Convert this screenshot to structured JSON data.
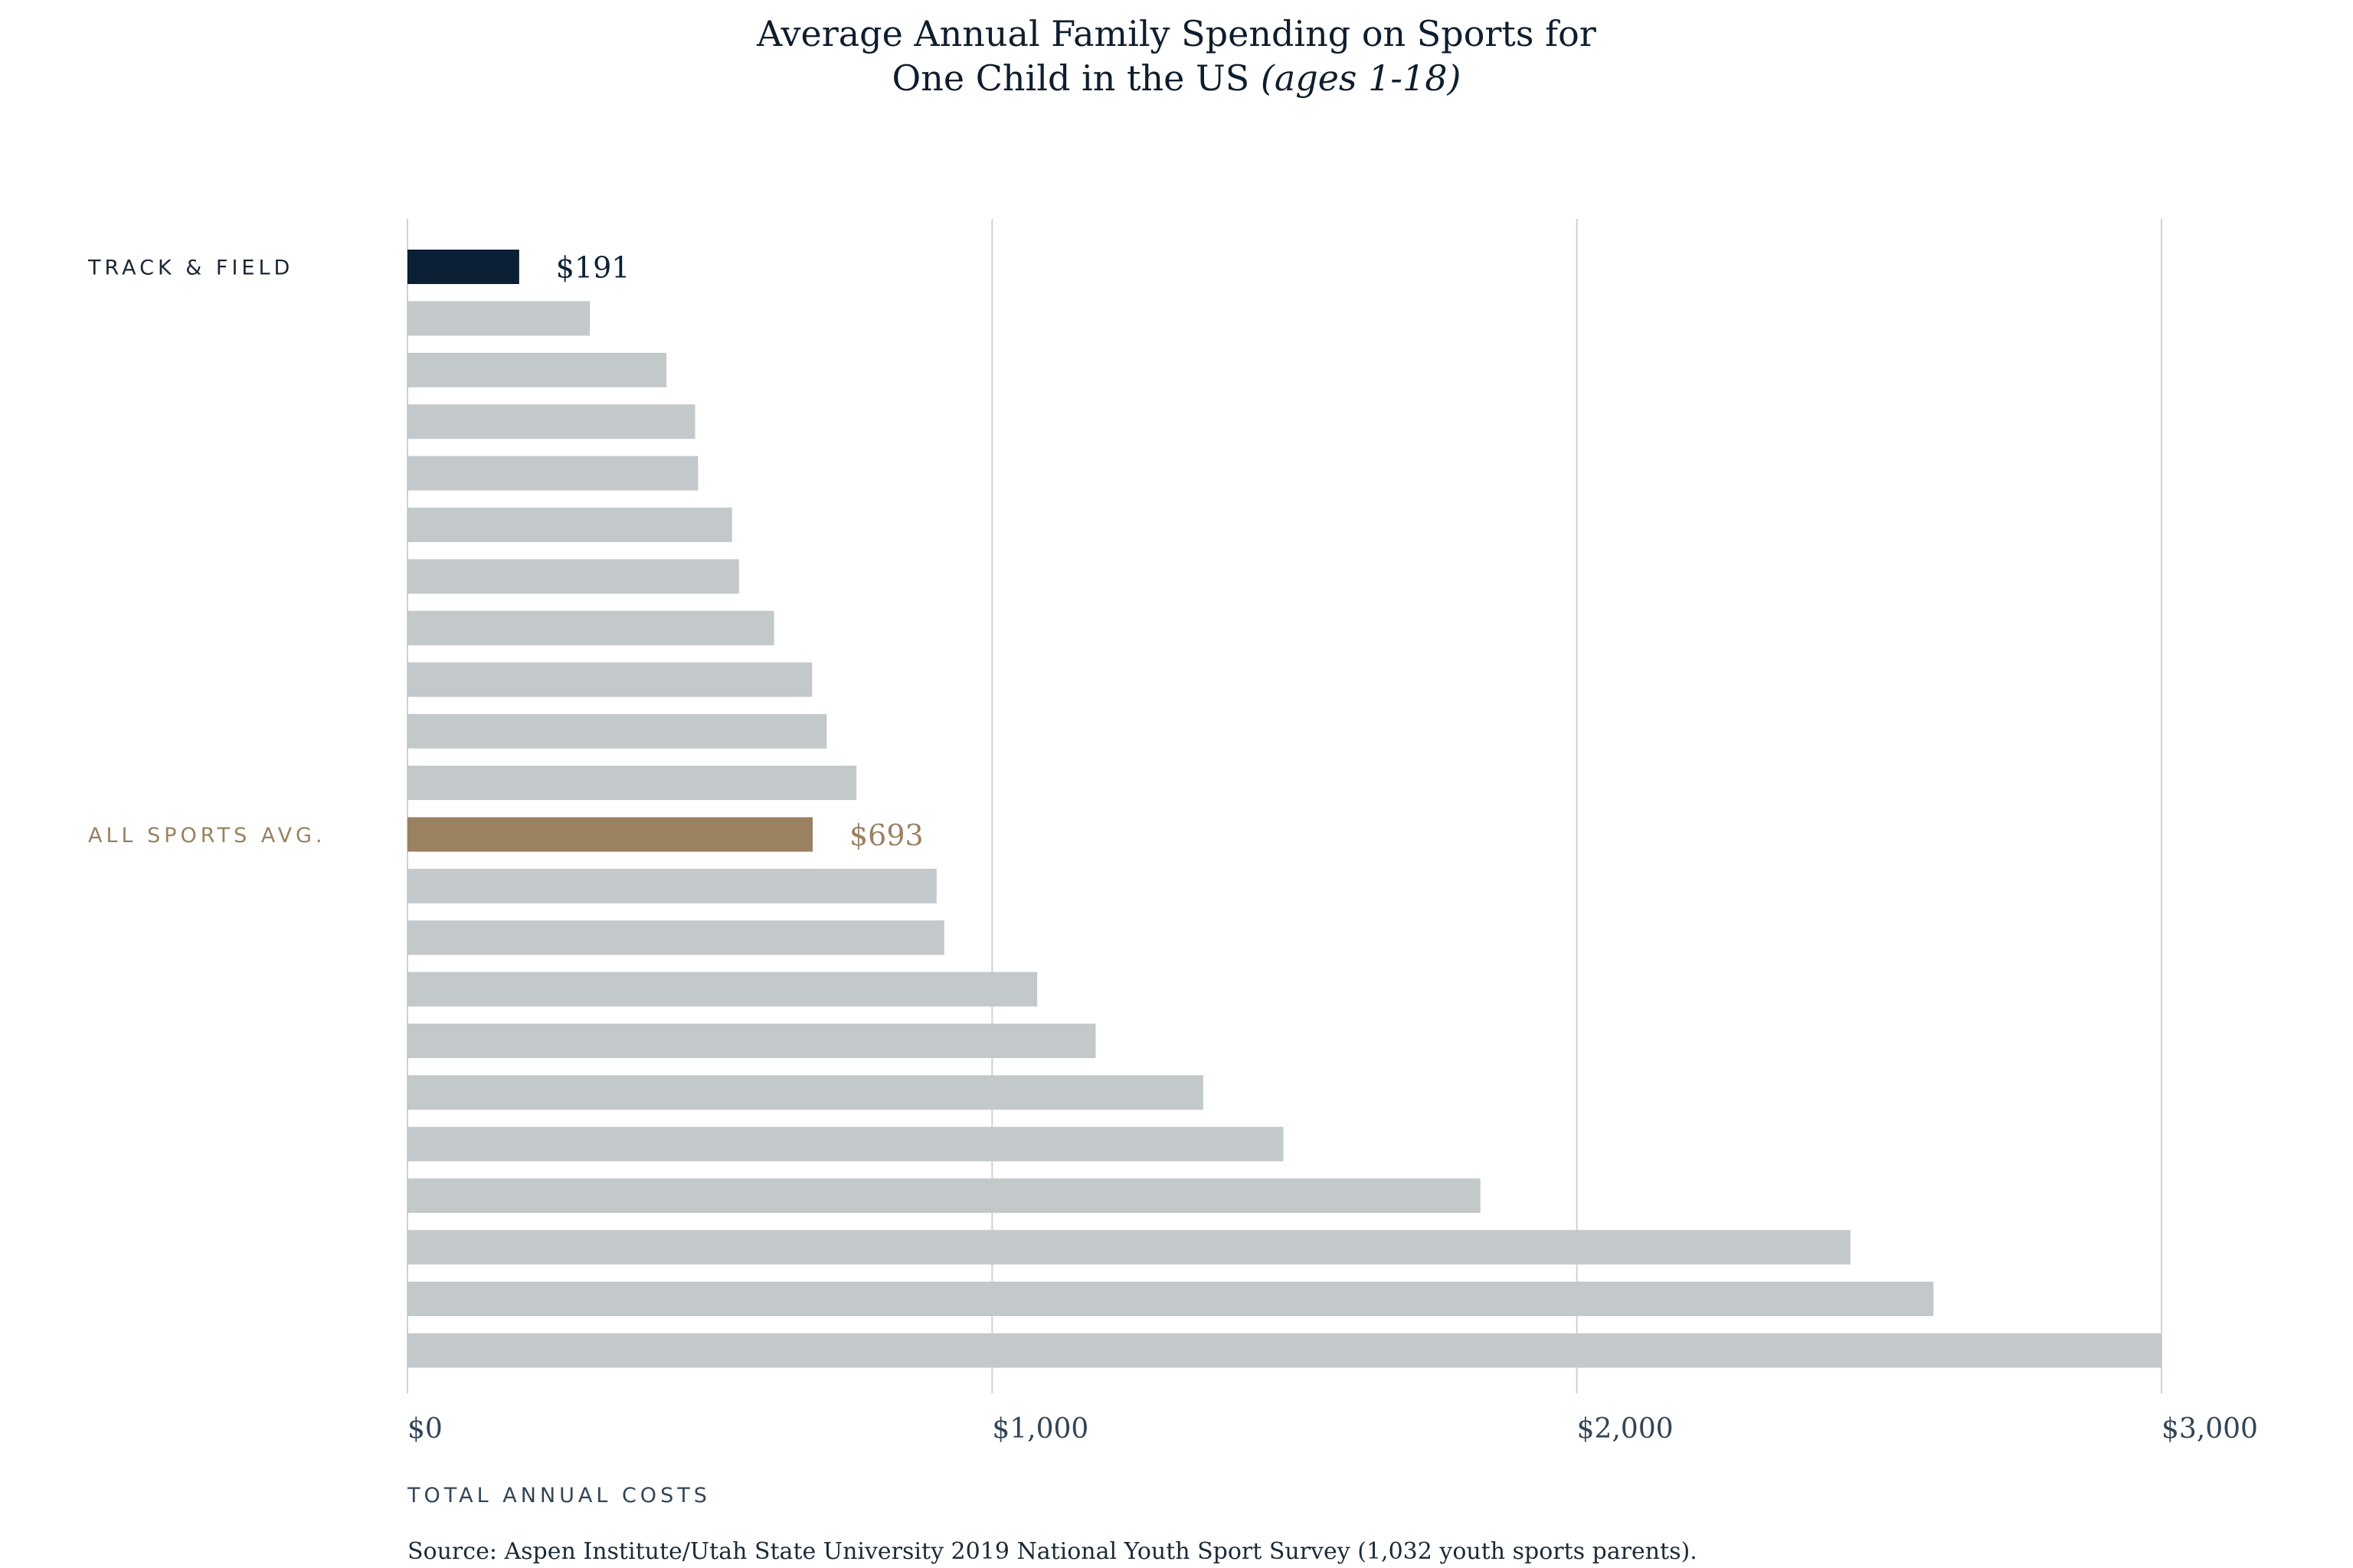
{
  "chart_data": {
    "type": "bar",
    "orientation": "horizontal",
    "title": "Average Annual Family Spending on Sports for",
    "title_line2": "One Child in the US",
    "title_line2_italic": "(ages 1-18)",
    "xlabel": "TOTAL ANNUAL COSTS",
    "xlim": [
      0,
      3000
    ],
    "x_ticks": [
      0,
      1000,
      2000,
      3000
    ],
    "x_tick_labels": [
      "$0",
      "$1,000",
      "$2,000",
      "$3,000"
    ],
    "grid": "vertical",
    "colors": {
      "default": "#c3c8ca",
      "highlight": "#0b1f35",
      "average": "#9a8160",
      "grid": "#cfd2d4"
    },
    "bars": [
      {
        "label": "TRACK & FIELD",
        "value": 191,
        "value_label": "$191",
        "style": "highlight"
      },
      {
        "label": "",
        "value": 312,
        "value_label": "",
        "style": "default"
      },
      {
        "label": "",
        "value": 443,
        "value_label": "",
        "style": "default"
      },
      {
        "label": "",
        "value": 492,
        "value_label": "",
        "style": "default"
      },
      {
        "label": "",
        "value": 497,
        "value_label": "",
        "style": "default"
      },
      {
        "label": "",
        "value": 555,
        "value_label": "",
        "style": "default"
      },
      {
        "label": "",
        "value": 567,
        "value_label": "",
        "style": "default"
      },
      {
        "label": "",
        "value": 627,
        "value_label": "",
        "style": "default"
      },
      {
        "label": "",
        "value": 692,
        "value_label": "",
        "style": "default"
      },
      {
        "label": "",
        "value": 717,
        "value_label": "",
        "style": "default"
      },
      {
        "label": "",
        "value": 768,
        "value_label": "",
        "style": "default"
      },
      {
        "label": "ALL SPORTS AVG.",
        "value": 693,
        "value_label": "$693",
        "style": "average"
      },
      {
        "label": "",
        "value": 905,
        "value_label": "",
        "style": "default"
      },
      {
        "label": "",
        "value": 918,
        "value_label": "",
        "style": "default"
      },
      {
        "label": "",
        "value": 1077,
        "value_label": "",
        "style": "default"
      },
      {
        "label": "",
        "value": 1177,
        "value_label": "",
        "style": "default"
      },
      {
        "label": "",
        "value": 1361,
        "value_label": "",
        "style": "default"
      },
      {
        "label": "",
        "value": 1498,
        "value_label": "",
        "style": "default"
      },
      {
        "label": "",
        "value": 1835,
        "value_label": "",
        "style": "default"
      },
      {
        "label": "",
        "value": 2468,
        "value_label": "",
        "style": "default"
      },
      {
        "label": "",
        "value": 2610,
        "value_label": "",
        "style": "default"
      },
      {
        "label": "",
        "value": 3000,
        "value_label": "",
        "style": "default"
      }
    ]
  },
  "source": "Source: Aspen Institute/Utah State University 2019 National Youth Sport Survey (1,032 youth sports parents)."
}
